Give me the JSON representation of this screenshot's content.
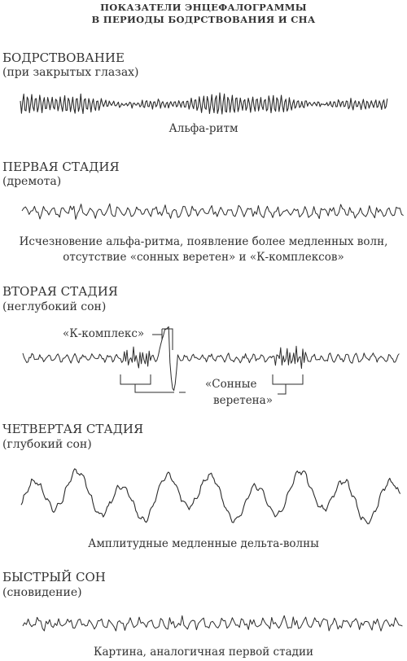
{
  "title": {
    "line1": "ПОКАЗАТЕЛИ ЭНЦЕФАЛОГРАММЫ",
    "line2": "В ПЕРИОДЫ БОДРСТВОВАНИЯ И СНА"
  },
  "sections": [
    {
      "heading": "БОДРСТВОВАНИЕ",
      "sub": "(при закрытых глазах)",
      "caption": "Альфа-ритм"
    },
    {
      "heading": "ПЕРВАЯ СТАДИЯ",
      "sub": "(дремота)",
      "caption1": "Исчезновение альфа-ритма, появление более медленных волн,",
      "caption2": "отсутствие «сонных веретен» и «К-комплексов»"
    },
    {
      "heading": "ВТОРАЯ СТАДИЯ",
      "sub": "(неглубокий сон)",
      "label_k": "«К-комплекс»",
      "label_spindle1": "«Сонные",
      "label_spindle2": "веретена»"
    },
    {
      "heading": "ЧЕТВЕРТАЯ СТАДИЯ",
      "sub": "(глубокий сон)",
      "caption": "Амплитудные медленные дельта-волны"
    },
    {
      "heading": "БЫСТРЫЙ СОН",
      "sub": "(сновидение)",
      "caption": "Картина, аналогичная первой стадии"
    }
  ],
  "colors": {
    "ink": "#2b2b2b",
    "background": "#ffffff"
  }
}
